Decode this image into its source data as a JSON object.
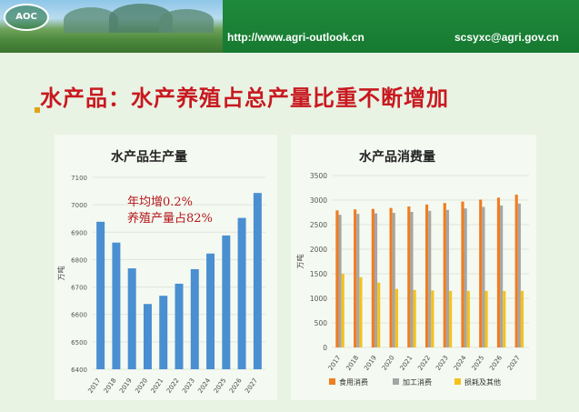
{
  "header": {
    "logo_text": "AOC",
    "url": "http://www.agri-outlook.cn",
    "email": "scsyxc@agri.gov.cn"
  },
  "slide_title": "水产品：水产养殖占总产量比重不断增加",
  "chart_data": [
    {
      "type": "bar",
      "title": "水产品生产量",
      "ylabel": "万吨",
      "categories": [
        "2017",
        "2018",
        "2019",
        "2020",
        "2021",
        "2022",
        "2023",
        "2024",
        "2025",
        "2026",
        "2027"
      ],
      "values": [
        6938,
        6862,
        6768,
        6638,
        6668,
        6712,
        6765,
        6822,
        6888,
        6952,
        7043
      ],
      "ylim": [
        6400,
        7100
      ],
      "yticks": [
        6400,
        6500,
        6600,
        6700,
        6800,
        6900,
        7000,
        7100
      ],
      "annotations": [
        "年均增0.2%",
        "养殖产量占82%"
      ],
      "color": "#4a8fd1"
    },
    {
      "type": "bar",
      "title": "水产品消费量",
      "ylabel": "万吨",
      "categories": [
        "2017",
        "2018",
        "2019",
        "2020",
        "2021",
        "2022",
        "2023",
        "2024",
        "2025",
        "2026",
        "2027"
      ],
      "ylim": [
        0,
        3500
      ],
      "yticks": [
        0,
        500,
        1000,
        1500,
        2000,
        2500,
        3000,
        3500
      ],
      "legend_position": "bottom",
      "series": [
        {
          "name": "食用消费",
          "color": "#ef7d22",
          "values": [
            2790,
            2810,
            2820,
            2840,
            2870,
            2910,
            2940,
            2970,
            3010,
            3050,
            3110
          ]
        },
        {
          "name": "加工消费",
          "color": "#a5a5a5",
          "values": [
            2700,
            2720,
            2730,
            2740,
            2760,
            2780,
            2800,
            2830,
            2860,
            2890,
            2930
          ]
        },
        {
          "name": "损耗及其他",
          "color": "#f4c21c",
          "values": [
            1500,
            1430,
            1320,
            1190,
            1170,
            1160,
            1150,
            1150,
            1150,
            1150,
            1150
          ]
        }
      ]
    }
  ]
}
